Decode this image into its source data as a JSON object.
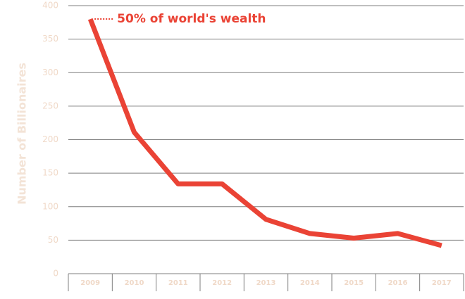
{
  "chart_data": {
    "type": "line",
    "title": "",
    "xlabel": "",
    "ylabel": "Number of Billionaires",
    "categories": [
      "2009",
      "2010",
      "2011",
      "2012",
      "2013",
      "2014",
      "2015",
      "2016",
      "2017"
    ],
    "series": [
      {
        "values": [
          380,
          211,
          134,
          134,
          81,
          60,
          53,
          60,
          42
        ],
        "color": "#ea4335"
      }
    ],
    "ylim": [
      0,
      400
    ],
    "yticks": [
      0,
      50,
      100,
      150,
      200,
      250,
      300,
      350,
      400
    ],
    "grid": true,
    "annotation": {
      "text": "50% of world's wealth",
      "x": "2009",
      "y": 380
    }
  }
}
